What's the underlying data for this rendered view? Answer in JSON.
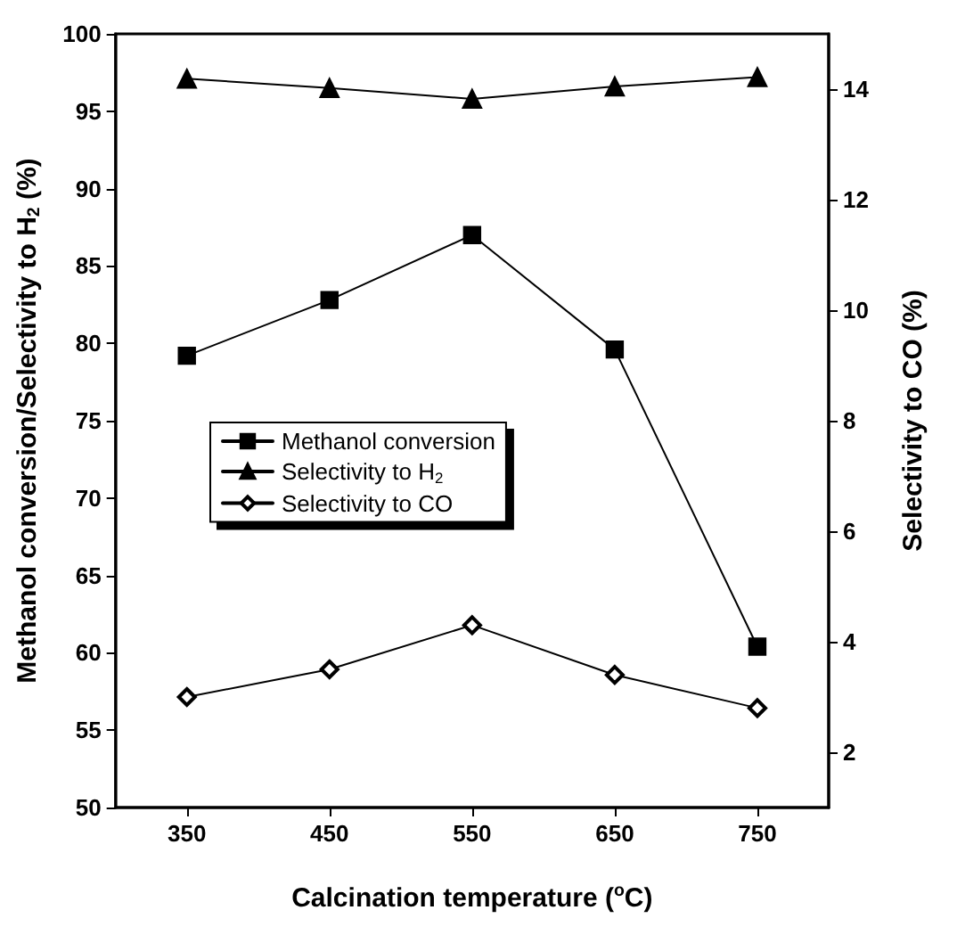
{
  "chart_data": {
    "type": "line",
    "xlabel": "Calcination temperature ($^{o}$C)",
    "ylabel": "Methanol conversion/Selectivity to H$_{2}$ (%)",
    "y2label": "Selectivity to CO (%)",
    "categories": [
      "350",
      "450",
      "550",
      "650",
      "750"
    ],
    "series": [
      {
        "name": "Methanol conversion",
        "color": "#000000",
        "marker": "square",
        "values": [
          79.2,
          82.8,
          87.0,
          79.6,
          60.4
        ]
      },
      {
        "name": "Selectivity to H$_{2}$",
        "color": "#000000",
        "marker": "triangle",
        "values": [
          97.1,
          96.5,
          95.8,
          96.6,
          97.2
        ]
      },
      {
        "name": "Selectivity to CO",
        "color": "#000000",
        "marker": "diamond",
        "axis": "y2",
        "values": [
          3.0,
          3.5,
          4.3,
          3.4,
          2.8
        ]
      }
    ],
    "ylim": [
      50,
      100
    ],
    "yticks": [
      50,
      55,
      60,
      65,
      70,
      75,
      80,
      85,
      90,
      95,
      100
    ],
    "y2lim": [
      1,
      15
    ],
    "y2ticks": [
      2,
      4,
      6,
      8,
      10,
      12,
      14
    ],
    "legend": "left",
    "line_style": "solid"
  }
}
